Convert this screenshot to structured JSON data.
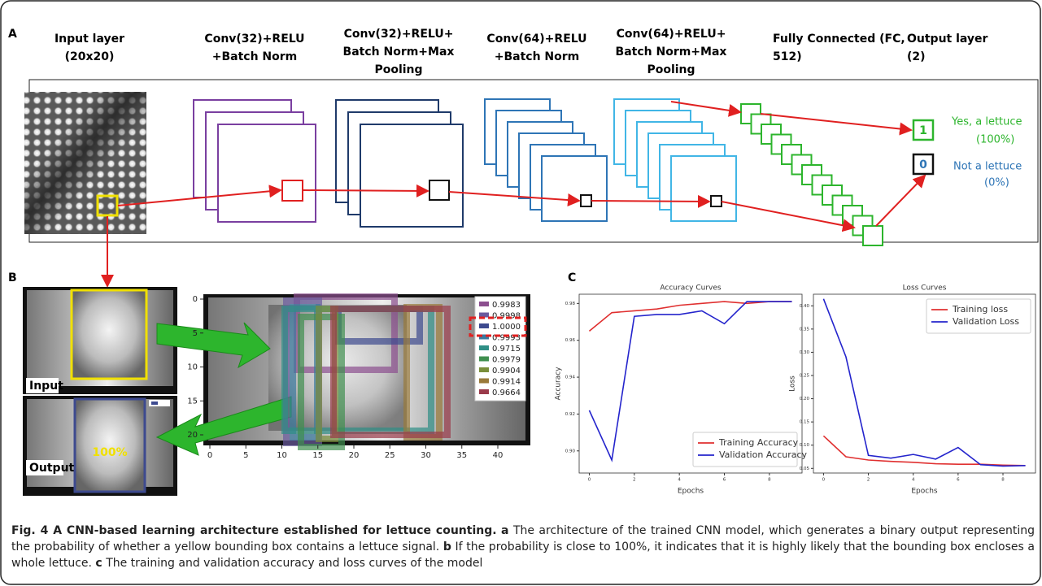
{
  "panel_labels": [
    "A",
    "B",
    "C"
  ],
  "panel_a": {
    "layers": [
      [
        "Input layer",
        "(20x20)"
      ],
      [
        "Conv(32)+RELU",
        "+Batch Norm"
      ],
      [
        "Conv(32)+RELU+",
        "Batch Norm+Max",
        "Pooling"
      ],
      [
        "Conv(64)+RELU",
        "+Batch Norm"
      ],
      [
        "Conv(64)+RELU+",
        "Batch Norm+Max",
        "Pooling"
      ],
      [
        "Fully Connected (FC,",
        "512)"
      ],
      [
        "Output layer",
        "(2)"
      ]
    ],
    "outputs": [
      {
        "value": "1",
        "label": "Yes, a lettuce",
        "prob": "(100%)"
      },
      {
        "value": "0",
        "label": "Not a lettuce",
        "prob": "(0%)"
      }
    ]
  },
  "panel_b": {
    "input_label": "Input",
    "output_label": "Output",
    "probability": "100%",
    "legend": [
      {
        "label": "0.9983",
        "color": "#8c4f8f"
      },
      {
        "label": "0.9998",
        "color": "#6a5a9e"
      },
      {
        "label": "1.0000",
        "color": "#3d4a8f"
      },
      {
        "label": "0.9993",
        "color": "#3a7aa0"
      },
      {
        "label": "0.9715",
        "color": "#2f8f86"
      },
      {
        "label": "0.9979",
        "color": "#3f8f4f"
      },
      {
        "label": "0.9904",
        "color": "#7a8f3a"
      },
      {
        "label": "0.9914",
        "color": "#9a7a3a"
      },
      {
        "label": "0.9664",
        "color": "#9a3a4a"
      }
    ],
    "xticks": [
      0,
      5,
      10,
      15,
      20,
      25,
      30,
      35,
      40
    ],
    "yticks": [
      0,
      5,
      10,
      15,
      20
    ]
  },
  "chart_data": [
    {
      "type": "line",
      "title": "Accuracy Curves",
      "x_label": "Epochs",
      "y_label": "Accuracy",
      "x": [
        0,
        1,
        2,
        3,
        4,
        5,
        6,
        7,
        8,
        9
      ],
      "xlim": [
        -0.45,
        9.45
      ],
      "xticks": [
        0,
        2,
        4,
        6,
        8
      ],
      "ylim": [
        0.888,
        0.985
      ],
      "yticks": [
        {
          "value": 0.9,
          "label": "0.90"
        },
        0.92,
        0.94,
        0.96,
        0.98
      ],
      "legend": "lower right",
      "series": [
        {
          "name": "Training Accuracy",
          "color": "#e03030",
          "values": [
            0.965,
            0.975,
            0.976,
            0.977,
            0.979,
            0.98,
            0.981,
            0.98,
            0.981,
            0.981
          ]
        },
        {
          "name": "Validation Accuracy",
          "color": "#2424cc",
          "values": [
            0.922,
            0.895,
            0.973,
            0.974,
            0.974,
            0.976,
            0.969,
            0.981,
            0.981,
            0.981
          ]
        }
      ]
    },
    {
      "type": "line",
      "title": "Loss Curves",
      "x_label": "Epochs",
      "y_label": "Loss",
      "x": [
        0,
        1,
        2,
        3,
        4,
        5,
        6,
        7,
        8,
        9
      ],
      "xlim": [
        -0.45,
        9.45
      ],
      "xticks": [
        0,
        2,
        4,
        6,
        8
      ],
      "ylim": [
        0.04,
        0.425
      ],
      "yticks": [
        0.05,
        {
          "value": 0.1,
          "label": "0.10"
        },
        0.15,
        {
          "value": 0.2,
          "label": "0.20"
        },
        0.25,
        {
          "value": 0.3,
          "label": "0.30"
        },
        0.35,
        {
          "value": 0.4,
          "label": "0.40"
        }
      ],
      "legend": "upper right",
      "series": [
        {
          "name": "Training loss",
          "color": "#e03030",
          "values": [
            0.12,
            0.075,
            0.068,
            0.065,
            0.063,
            0.06,
            0.059,
            0.059,
            0.057,
            0.056
          ]
        },
        {
          "name": "Validation Loss",
          "color": "#2424cc",
          "values": [
            0.415,
            0.29,
            0.078,
            0.072,
            0.08,
            0.07,
            0.095,
            0.058,
            0.055,
            0.056
          ]
        }
      ]
    }
  ],
  "caption": {
    "title": "Fig. 4 A CNN-based learning architecture established for lettuce counting.",
    "items": [
      {
        "letter": "a",
        "text": "The architecture of the trained CNN model, which generates a binary output representing the probability of whether a yellow bounding box contains a lettuce signal."
      },
      {
        "letter": "b",
        "text": "If the probability is close to 100%, it indicates that it is highly likely that the bounding box encloses a whole lettuce."
      },
      {
        "letter": "c",
        "text": "The training and validation accuracy and loss curves of the model"
      }
    ]
  }
}
